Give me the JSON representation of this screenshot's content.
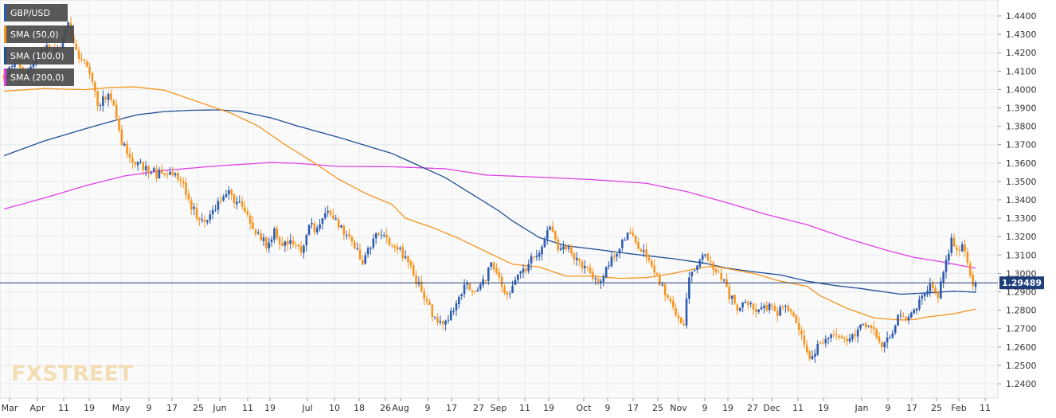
{
  "chart_data": {
    "type": "candlestick",
    "symbol": "GBP/USD",
    "y_range": [
      1.2351,
      1.4495
    ],
    "y_ticks": [
      "1.4400",
      "1.4300",
      "1.4200",
      "1.4100",
      "1.4000",
      "1.3900",
      "1.3800",
      "1.3700",
      "1.3600",
      "1.3500",
      "1.3400",
      "1.3300",
      "1.3200",
      "1.3100",
      "1.3000",
      "1.2900",
      "1.2800",
      "1.2700",
      "1.2600",
      "1.2500",
      "1.2400"
    ],
    "x_ticks": [
      "Mar",
      "Apr",
      "11",
      "19",
      "May",
      "9",
      "17",
      "25",
      "Jun",
      "11",
      "19",
      "Jul",
      "10",
      "18",
      "26",
      "Aug",
      "9",
      "17",
      "27",
      "Sep",
      "11",
      "19",
      "Oct",
      "9",
      "17",
      "25",
      "Nov",
      "9",
      "19",
      "27",
      "Dec",
      "11",
      "19",
      "Jan",
      "9",
      "17",
      "25",
      "Feb",
      "11"
    ],
    "current_price": "1.29489",
    "legend": [
      {
        "label": "GBP/USD",
        "color": "#2d5bb0"
      },
      {
        "label": "SMA (50,0)",
        "color": "#f7941d"
      },
      {
        "label": "SMA (100,0)",
        "color": "#1f4e96"
      },
      {
        "label": "SMA (200,0)",
        "color": "#e040e6"
      }
    ],
    "sma50": [
      [
        0,
        1.3991
      ],
      [
        15,
        1.4005
      ],
      [
        30,
        1.3999
      ],
      [
        41,
        1.4012
      ],
      [
        49,
        1.4014
      ],
      [
        60,
        1.3996
      ],
      [
        70,
        1.3946
      ],
      [
        85,
        1.387
      ],
      [
        95,
        1.3801
      ],
      [
        105,
        1.37
      ],
      [
        115,
        1.361
      ],
      [
        125,
        1.3513
      ],
      [
        135,
        1.3435
      ],
      [
        145,
        1.3375
      ],
      [
        150,
        1.33
      ],
      [
        160,
        1.325
      ],
      [
        170,
        1.319
      ],
      [
        180,
        1.3119
      ],
      [
        190,
        1.305
      ],
      [
        200,
        1.3035
      ],
      [
        210,
        1.2985
      ],
      [
        220,
        1.2985
      ],
      [
        230,
        1.2973
      ],
      [
        240,
        1.2977
      ],
      [
        250,
        1.3
      ],
      [
        260,
        1.303
      ],
      [
        265,
        1.304
      ],
      [
        280,
        1.3
      ],
      [
        290,
        1.2958
      ],
      [
        300,
        1.293
      ],
      [
        305,
        1.2878
      ],
      [
        315,
        1.281
      ],
      [
        325,
        1.2758
      ],
      [
        335,
        1.2747
      ],
      [
        340,
        1.2749
      ],
      [
        345,
        1.2763
      ],
      [
        355,
        1.2781
      ],
      [
        363,
        1.2806
      ]
    ],
    "sma100": [
      [
        0,
        1.364
      ],
      [
        15,
        1.372
      ],
      [
        30,
        1.3785
      ],
      [
        41,
        1.383
      ],
      [
        50,
        1.3863
      ],
      [
        60,
        1.388
      ],
      [
        70,
        1.3887
      ],
      [
        80,
        1.3889
      ],
      [
        88,
        1.3882
      ],
      [
        100,
        1.3845
      ],
      [
        110,
        1.38
      ],
      [
        125,
        1.374
      ],
      [
        145,
        1.3652
      ],
      [
        165,
        1.352
      ],
      [
        185,
        1.3339
      ],
      [
        190,
        1.3285
      ],
      [
        200,
        1.3195
      ],
      [
        210,
        1.315
      ],
      [
        220,
        1.3133
      ],
      [
        235,
        1.3105
      ],
      [
        250,
        1.308
      ],
      [
        262,
        1.3055
      ],
      [
        270,
        1.3029
      ],
      [
        280,
        1.3009
      ],
      [
        290,
        1.2992
      ],
      [
        300,
        1.2958
      ],
      [
        310,
        1.2935
      ],
      [
        320,
        1.2918
      ],
      [
        335,
        1.2887
      ],
      [
        345,
        1.2894
      ],
      [
        355,
        1.2903
      ],
      [
        363,
        1.2898
      ]
    ],
    "sma200": [
      [
        0,
        1.335
      ],
      [
        15,
        1.341
      ],
      [
        30,
        1.3475
      ],
      [
        45,
        1.353
      ],
      [
        60,
        1.356
      ],
      [
        80,
        1.3585
      ],
      [
        100,
        1.3603
      ],
      [
        110,
        1.3598
      ],
      [
        125,
        1.3582
      ],
      [
        145,
        1.358
      ],
      [
        165,
        1.3569
      ],
      [
        180,
        1.3535
      ],
      [
        200,
        1.3523
      ],
      [
        220,
        1.351
      ],
      [
        240,
        1.349
      ],
      [
        255,
        1.3445
      ],
      [
        270,
        1.3385
      ],
      [
        285,
        1.332
      ],
      [
        300,
        1.3265
      ],
      [
        315,
        1.319
      ],
      [
        330,
        1.3125
      ],
      [
        340,
        1.3087
      ],
      [
        350,
        1.3064
      ],
      [
        363,
        1.3028
      ]
    ],
    "anchors": [
      [
        0,
        1.407
      ],
      [
        4,
        1.416
      ],
      [
        8,
        1.405
      ],
      [
        12,
        1.418
      ],
      [
        16,
        1.423
      ],
      [
        20,
        1.42
      ],
      [
        24,
        1.435
      ],
      [
        28,
        1.419
      ],
      [
        32,
        1.41
      ],
      [
        35,
        1.393
      ],
      [
        40,
        1.396
      ],
      [
        44,
        1.372
      ],
      [
        48,
        1.36
      ],
      [
        53,
        1.358
      ],
      [
        57,
        1.354
      ],
      [
        62,
        1.356
      ],
      [
        66,
        1.352
      ],
      [
        70,
        1.336
      ],
      [
        73,
        1.33
      ],
      [
        76,
        1.33
      ],
      [
        80,
        1.338
      ],
      [
        83,
        1.345
      ],
      [
        86,
        1.339
      ],
      [
        89,
        1.338
      ],
      [
        92,
        1.326
      ],
      [
        95,
        1.321
      ],
      [
        98,
        1.316
      ],
      [
        101,
        1.323
      ],
      [
        104,
        1.315
      ],
      [
        108,
        1.318
      ],
      [
        111,
        1.311
      ],
      [
        114,
        1.328
      ],
      [
        117,
        1.323
      ],
      [
        120,
        1.333
      ],
      [
        124,
        1.328
      ],
      [
        128,
        1.321
      ],
      [
        131,
        1.315
      ],
      [
        134,
        1.305
      ],
      [
        137,
        1.316
      ],
      [
        140,
        1.322
      ],
      [
        143,
        1.318
      ],
      [
        146,
        1.315
      ],
      [
        149,
        1.31
      ],
      [
        152,
        1.303
      ],
      [
        155,
        1.293
      ],
      [
        158,
        1.284
      ],
      [
        161,
        1.275
      ],
      [
        164,
        1.272
      ],
      [
        167,
        1.278
      ],
      [
        170,
        1.287
      ],
      [
        173,
        1.295
      ],
      [
        176,
        1.288
      ],
      [
        179,
        1.295
      ],
      [
        182,
        1.305
      ],
      [
        185,
        1.296
      ],
      [
        188,
        1.288
      ],
      [
        191,
        1.296
      ],
      [
        194,
        1.301
      ],
      [
        197,
        1.308
      ],
      [
        200,
        1.312
      ],
      [
        204,
        1.325
      ],
      [
        207,
        1.313
      ],
      [
        210,
        1.315
      ],
      [
        213,
        1.308
      ],
      [
        216,
        1.305
      ],
      [
        219,
        1.301
      ],
      [
        222,
        1.295
      ],
      [
        225,
        1.302
      ],
      [
        228,
        1.31
      ],
      [
        231,
        1.317
      ],
      [
        234,
        1.323
      ],
      [
        237,
        1.314
      ],
      [
        240,
        1.309
      ],
      [
        243,
        1.302
      ],
      [
        246,
        1.292
      ],
      [
        249,
        1.285
      ],
      [
        252,
        1.276
      ],
      [
        254,
        1.272
      ],
      [
        256,
        1.298
      ],
      [
        259,
        1.304
      ],
      [
        262,
        1.312
      ],
      [
        265,
        1.304
      ],
      [
        268,
        1.298
      ],
      [
        271,
        1.288
      ],
      [
        274,
        1.282
      ],
      [
        277,
        1.286
      ],
      [
        280,
        1.28
      ],
      [
        283,
        1.283
      ],
      [
        286,
        1.282
      ],
      [
        289,
        1.279
      ],
      [
        292,
        1.282
      ],
      [
        295,
        1.276
      ],
      [
        298,
        1.268
      ],
      [
        301,
        1.253
      ],
      [
        304,
        1.26
      ],
      [
        307,
        1.264
      ],
      [
        310,
        1.265
      ],
      [
        313,
        1.264
      ],
      [
        316,
        1.264
      ],
      [
        319,
        1.27
      ],
      [
        322,
        1.272
      ],
      [
        325,
        1.268
      ],
      [
        328,
        1.26
      ],
      [
        331,
        1.265
      ],
      [
        334,
        1.276
      ],
      [
        337,
        1.276
      ],
      [
        340,
        1.28
      ],
      [
        343,
        1.287
      ],
      [
        346,
        1.295
      ],
      [
        349,
        1.288
      ],
      [
        352,
        1.307
      ],
      [
        354,
        1.318
      ],
      [
        356,
        1.311
      ],
      [
        358,
        1.315
      ],
      [
        360,
        1.307
      ],
      [
        362,
        1.295
      ],
      [
        363,
        1.2949
      ]
    ]
  }
}
